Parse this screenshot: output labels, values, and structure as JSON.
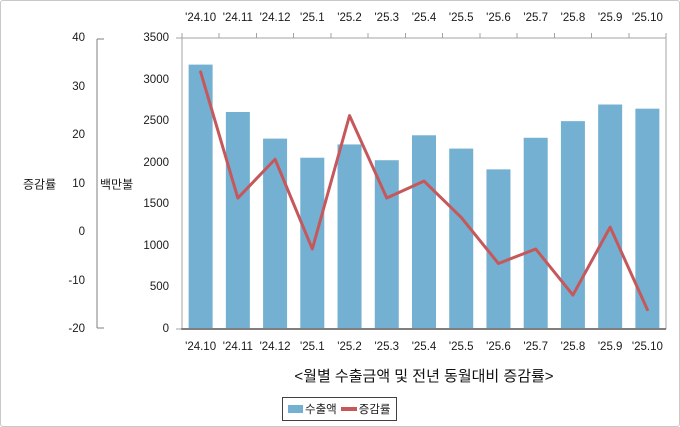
{
  "chart_data": {
    "type": "bar+line combo",
    "title": "<월별 수출금액 및 전년 동월대비 증감률>",
    "categories": [
      "'24.10",
      "'24.11",
      "'24.12",
      "'25.1",
      "'25.2",
      "'25.3",
      "'25.4",
      "'25.5",
      "'25.6",
      "'25.7",
      "'25.8",
      "'25.9",
      "'25.10"
    ],
    "series": [
      {
        "name": "수출액",
        "type": "bar",
        "axis": "value_axis",
        "color": "#74B0D1",
        "values": [
          3180,
          2610,
          2290,
          2060,
          2220,
          2030,
          2330,
          2170,
          1920,
          2300,
          2500,
          2700,
          2650
        ]
      },
      {
        "name": "증감률",
        "type": "line",
        "axis": "left_axis",
        "color": "#C6585C",
        "values": [
          33,
          7,
          15,
          -3.5,
          24,
          7,
          10.5,
          3,
          -6.5,
          -3.5,
          -13,
          1,
          -16
        ]
      }
    ],
    "left_axis": {
      "label": "증감률",
      "min": -20,
      "max": 40,
      "step": 10,
      "ticks": [
        40,
        30,
        20,
        10,
        0,
        -10,
        -20
      ]
    },
    "value_axis": {
      "label": "백만불",
      "min": 0,
      "max": 3500,
      "step": 500,
      "ticks": [
        3500,
        3000,
        2500,
        2000,
        1500,
        1000,
        500,
        0
      ]
    },
    "category_axis": {
      "position": "top and bottom"
    },
    "grid": false,
    "legend_position": "bottom"
  },
  "colors": {
    "bar": "#74B0D1",
    "line": "#C6585C",
    "plot_border": "#A3A3A3",
    "axis_line": "#7F7F7F",
    "text": "#1A1A1A"
  }
}
